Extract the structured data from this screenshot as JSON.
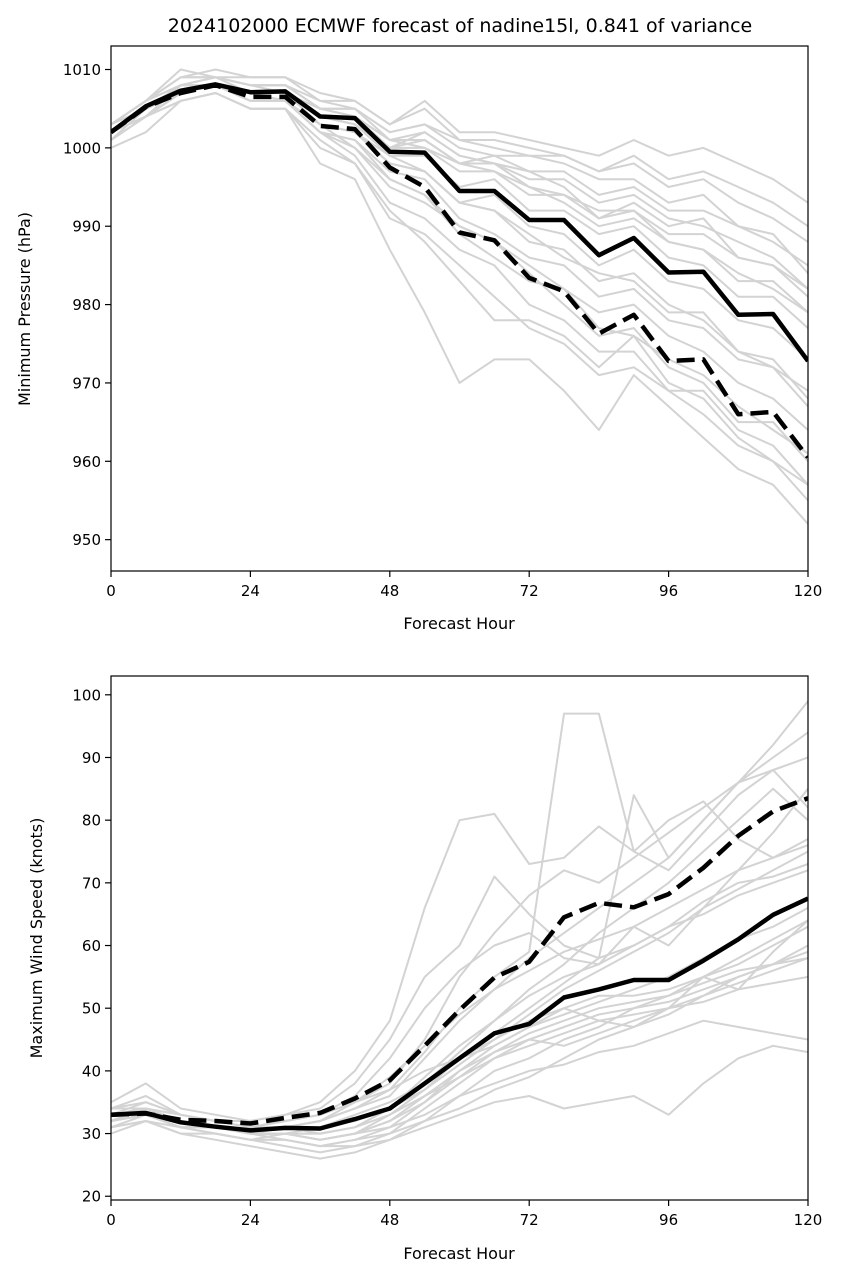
{
  "figure": {
    "title": "2024102000 ECMWF forecast of nadine15l, 0.841 of variance"
  },
  "colors": {
    "ensemble": "#d3d3d3",
    "mean": "#000000",
    "background": "#ffffff"
  },
  "chart_data": [
    {
      "type": "line",
      "id": "pressure",
      "title": "2024102000 ECMWF forecast of nadine15l, 0.841 of variance",
      "xlabel": "Forecast Hour",
      "ylabel": "Minimum Pressure (hPa)",
      "xlim": [
        0,
        120
      ],
      "ylim": [
        946,
        1013
      ],
      "xticks": [
        0,
        24,
        48,
        72,
        96,
        120
      ],
      "yticks": [
        950,
        960,
        970,
        980,
        990,
        1000,
        1010
      ],
      "grid": false,
      "x": [
        0,
        6,
        12,
        18,
        24,
        30,
        36,
        42,
        48,
        54,
        60,
        66,
        72,
        78,
        84,
        90,
        96,
        102,
        108,
        114,
        120
      ],
      "series": [
        {
          "style": "solid",
          "values": [
            1002,
            1005.3,
            1007.3,
            1008.1,
            1007.1,
            1007.2,
            1004,
            1003.8,
            999.5,
            999.4,
            994.5,
            994.5,
            990.8,
            990.8,
            986.3,
            988.5,
            984.1,
            984.2,
            978.7,
            978.8,
            972.8
          ]
        },
        {
          "style": "dashed",
          "values": [
            1002,
            1005.2,
            1007,
            1008,
            1006.5,
            1006.5,
            1002.8,
            1002.4,
            997.5,
            995,
            989.2,
            988.2,
            983.4,
            981.7,
            976.3,
            978.7,
            972.8,
            973,
            966,
            966.3,
            960.5
          ]
        }
      ],
      "ensemble": [
        [
          1001,
          1004,
          1006,
          1007,
          1005,
          1005,
          1001,
          998,
          991,
          989,
          985,
          981,
          977,
          975,
          971,
          972,
          969,
          966,
          962,
          960,
          957
        ],
        [
          1003,
          1006,
          1008,
          1009,
          1008,
          1008,
          1006,
          1005,
          1001,
          1000,
          998,
          998,
          995,
          994,
          992,
          992,
          988,
          987,
          984,
          982,
          979
        ],
        [
          1002,
          1005,
          1007,
          1008,
          1007,
          1007,
          1004,
          1003,
          1000,
          1002,
          999,
          998,
          997,
          995,
          991,
          993,
          990,
          991,
          986,
          985,
          982
        ],
        [
          1003,
          1006,
          1009,
          1009,
          1008,
          1007,
          1005,
          1005,
          1002,
          1003,
          1001,
          1000,
          999,
          998,
          996,
          996,
          993,
          994,
          990,
          989,
          984
        ],
        [
          1002,
          1004,
          1007,
          1008,
          1006,
          1006,
          1003,
          1000,
          995,
          993,
          990,
          988,
          984,
          980,
          976,
          977,
          972,
          970,
          965,
          965,
          960
        ],
        [
          1001,
          1005,
          1007,
          1008,
          1006,
          1006,
          1002,
          999,
          993,
          991,
          987,
          985,
          980,
          978,
          974,
          974,
          969,
          969,
          964,
          962,
          957
        ],
        [
          1002,
          1004,
          1008,
          1008,
          1007,
          1007,
          1003,
          1002,
          998,
          997,
          993,
          992,
          989,
          986,
          984,
          983,
          979,
          979,
          974,
          972,
          969
        ],
        [
          1003,
          1006,
          1010,
          1009,
          1009,
          1009,
          1006,
          1006,
          1003,
          1005,
          1001,
          1001,
          1000,
          999,
          997,
          998,
          995,
          996,
          993,
          991,
          988
        ],
        [
          1000,
          1002,
          1006,
          1007,
          1005,
          1005,
          998,
          996,
          987,
          979,
          970,
          973,
          973,
          969,
          964,
          971,
          967,
          963,
          959,
          957,
          952
        ],
        [
          1002,
          1005,
          1007,
          1008,
          1006,
          1006,
          1002,
          1001,
          996,
          994,
          989,
          986,
          983,
          982,
          977,
          976,
          973,
          971,
          967,
          964,
          961
        ],
        [
          1003,
          1006,
          1009,
          1009,
          1008,
          1008,
          1005,
          1004,
          1001,
          1001,
          998,
          997,
          995,
          993,
          990,
          991,
          988,
          987,
          983,
          983,
          979
        ],
        [
          1002,
          1005,
          1008,
          1009,
          1007,
          1007,
          1004,
          1003,
          999,
          999,
          995,
          996,
          992,
          992,
          989,
          990,
          986,
          985,
          981,
          981,
          977
        ],
        [
          1001,
          1004,
          1007,
          1008,
          1006,
          1006,
          1002,
          1001,
          997,
          996,
          991,
          989,
          986,
          985,
          981,
          982,
          978,
          977,
          973,
          972,
          967
        ],
        [
          1002,
          1005,
          1008,
          1008,
          1007,
          1007,
          1004,
          1004,
          1000,
          1000,
          997,
          997,
          994,
          994,
          991,
          992,
          989,
          989,
          986,
          985,
          981
        ],
        [
          1003,
          1005,
          1007,
          1008,
          1007,
          1006,
          1003,
          1002,
          999,
          997,
          993,
          994,
          990,
          989,
          985,
          987,
          983,
          982,
          978,
          977,
          973
        ],
        [
          1002,
          1005,
          1007,
          1008,
          1007,
          1007,
          1004,
          1003,
          1000,
          1001,
          998,
          999,
          997,
          997,
          994,
          995,
          992,
          992,
          990,
          988,
          985
        ],
        [
          1002,
          1004,
          1006,
          1007,
          1005,
          1005,
          1000,
          998,
          992,
          988,
          983,
          978,
          978,
          976,
          972,
          976,
          970,
          968,
          963,
          960,
          955
        ],
        [
          1003,
          1006,
          1008,
          1009,
          1008,
          1008,
          1005,
          1005,
          1002,
          1003,
          1000,
          999,
          999,
          999,
          997,
          999,
          996,
          997,
          995,
          993,
          990
        ],
        [
          1002,
          1005,
          1007,
          1008,
          1007,
          1006,
          1003,
          1002,
          998,
          997,
          993,
          992,
          988,
          987,
          983,
          984,
          980,
          978,
          974,
          973,
          968
        ],
        [
          1001,
          1004,
          1007,
          1008,
          1006,
          1006,
          1002,
          1000,
          996,
          994,
          990,
          988,
          985,
          982,
          979,
          980,
          976,
          974,
          970,
          968,
          964
        ],
        [
          1002,
          1005,
          1008,
          1009,
          1008,
          1008,
          1005,
          1004,
          1001,
          1002,
          999,
          998,
          996,
          996,
          993,
          994,
          991,
          990,
          988,
          986,
          982
        ],
        [
          1003,
          1006,
          1009,
          1010,
          1009,
          1009,
          1007,
          1006,
          1003,
          1006,
          1002,
          1002,
          1001,
          1000,
          999,
          1001,
          999,
          1000,
          998,
          996,
          993
        ]
      ]
    },
    {
      "type": "line",
      "id": "wind",
      "title": "",
      "xlabel": "Forecast Hour",
      "ylabel": "Maximum Wind Speed (knots)",
      "xlim": [
        0,
        120
      ],
      "ylim": [
        19.4,
        103
      ],
      "xticks": [
        0,
        24,
        48,
        72,
        96,
        120
      ],
      "yticks": [
        20,
        30,
        40,
        50,
        60,
        70,
        80,
        90,
        100
      ],
      "grid": false,
      "x": [
        0,
        6,
        12,
        18,
        24,
        30,
        36,
        42,
        48,
        54,
        60,
        66,
        72,
        78,
        84,
        90,
        96,
        102,
        108,
        114,
        120
      ],
      "series": [
        {
          "style": "solid",
          "values": [
            33,
            33.3,
            31.8,
            31.1,
            30.5,
            30.9,
            30.8,
            32.3,
            34,
            38,
            42,
            46,
            47.5,
            51.7,
            53,
            54.5,
            54.5,
            57.6,
            61,
            64.9,
            67.5
          ]
        },
        {
          "style": "dashed",
          "values": [
            33,
            33.2,
            32.2,
            32,
            31.6,
            32.5,
            33.3,
            35.6,
            38.5,
            44,
            49.7,
            54.9,
            57.4,
            64.5,
            66.8,
            66.1,
            68.2,
            72.4,
            77.5,
            81.4,
            83.5
          ]
        }
      ],
      "ensemble": [
        [
          33,
          34,
          32,
          31,
          30,
          31,
          32,
          34,
          36,
          42,
          48,
          53,
          58,
          62,
          66,
          70,
          74,
          80,
          86,
          90,
          94
        ],
        [
          32,
          33,
          31,
          30,
          29,
          29,
          28,
          29,
          30,
          34,
          38,
          42,
          44,
          46,
          48,
          49,
          50,
          52,
          54,
          56,
          58
        ],
        [
          34,
          36,
          33,
          32,
          31,
          32,
          33,
          35,
          38,
          45,
          55,
          62,
          68,
          72,
          70,
          74,
          78,
          82,
          86,
          88,
          90
        ],
        [
          31,
          32,
          30,
          29,
          28,
          27,
          26,
          27,
          29,
          32,
          36,
          40,
          42,
          45,
          47,
          50,
          52,
          55,
          58,
          61,
          64
        ],
        [
          33,
          34,
          33,
          32,
          31,
          32,
          33,
          36,
          42,
          50,
          56,
          60,
          62,
          58,
          57,
          63,
          60,
          66,
          72,
          78,
          85
        ],
        [
          32,
          33,
          31,
          30,
          29,
          30,
          29,
          30,
          31,
          33,
          36,
          38,
          40,
          41,
          43,
          44,
          46,
          48,
          47,
          46,
          45
        ],
        [
          35,
          38,
          34,
          33,
          32,
          33,
          34,
          38,
          45,
          55,
          60,
          71,
          65,
          60,
          58,
          84,
          74,
          80,
          86,
          92,
          99
        ],
        [
          33,
          33,
          32,
          31,
          30,
          30,
          29,
          30,
          32,
          35,
          40,
          44,
          47,
          50,
          52,
          52,
          53,
          55,
          57,
          60,
          63
        ],
        [
          30,
          32,
          31,
          31,
          30,
          31,
          32,
          34,
          37,
          43,
          50,
          55,
          59,
          97,
          97,
          75,
          72,
          78,
          84,
          88,
          82
        ],
        [
          33,
          35,
          33,
          32,
          32,
          33,
          35,
          40,
          48,
          66,
          80,
          81,
          73,
          74,
          79,
          75,
          80,
          83,
          77,
          74,
          77
        ],
        [
          34,
          34,
          32,
          31,
          30,
          30,
          30,
          31,
          33,
          37,
          42,
          46,
          50,
          54,
          58,
          60,
          63,
          67,
          70,
          71,
          73
        ],
        [
          32,
          33,
          31,
          31,
          30,
          30,
          31,
          33,
          35,
          38,
          43,
          48,
          53,
          57,
          62,
          66,
          70,
          75,
          80,
          85,
          80
        ],
        [
          31,
          32,
          30,
          30,
          29,
          29,
          28,
          28,
          30,
          32,
          34,
          37,
          39,
          42,
          45,
          47,
          49,
          52,
          55,
          57,
          60
        ],
        [
          33,
          34,
          32,
          31,
          30,
          31,
          32,
          35,
          39,
          44,
          49,
          53,
          56,
          59,
          61,
          63,
          66,
          69,
          72,
          74,
          76
        ],
        [
          32,
          33,
          32,
          31,
          30,
          30,
          29,
          30,
          32,
          36,
          40,
          43,
          45,
          44,
          46,
          48,
          50,
          51,
          53,
          54,
          55
        ],
        [
          34,
          35,
          33,
          32,
          31,
          31,
          30,
          31,
          34,
          38,
          42,
          45,
          48,
          50,
          48,
          47,
          50,
          55,
          53,
          59,
          64
        ],
        [
          33,
          33,
          31,
          31,
          30,
          30,
          30,
          31,
          34,
          39,
          44,
          48,
          52,
          55,
          57,
          60,
          63,
          65,
          68,
          70,
          72
        ],
        [
          32,
          34,
          32,
          31,
          30,
          29,
          28,
          29,
          31,
          35,
          39,
          43,
          46,
          48,
          50,
          51,
          52,
          54,
          56,
          57,
          58
        ],
        [
          33,
          34,
          33,
          32,
          31,
          32,
          33,
          35,
          37,
          40,
          42,
          44,
          47,
          49,
          51,
          53,
          55,
          58,
          61,
          63,
          66
        ],
        [
          31,
          33,
          31,
          30,
          29,
          28,
          27,
          28,
          29,
          31,
          33,
          35,
          36,
          34,
          35,
          36,
          33,
          38,
          42,
          44,
          43
        ],
        [
          33,
          33,
          32,
          31,
          30,
          31,
          31,
          32,
          34,
          37,
          41,
          45,
          49,
          53,
          56,
          59,
          62,
          66,
          69,
          72,
          75
        ],
        [
          32,
          33,
          32,
          31,
          30,
          30,
          29,
          30,
          33,
          36,
          39,
          42,
          45,
          47,
          49,
          50,
          51,
          53,
          55,
          57,
          59
        ]
      ]
    }
  ]
}
